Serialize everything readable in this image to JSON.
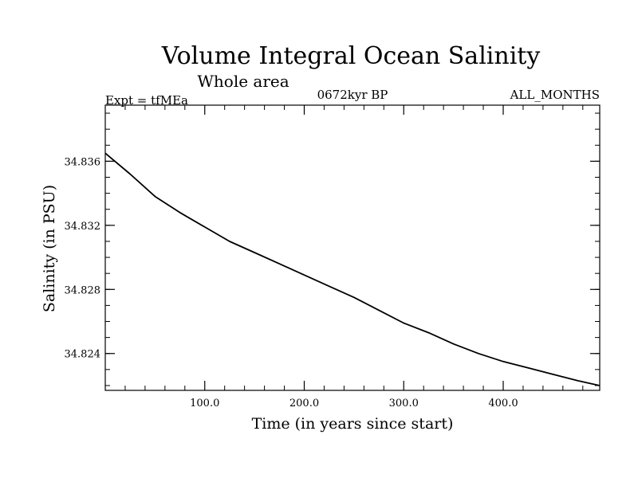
{
  "chart_data": {
    "type": "line",
    "title": "Volume Integral Ocean Salinity",
    "subtitle": "Whole area",
    "annotations": {
      "left": "Expt = tfMEa",
      "center": "0672kyr BP",
      "right": "ALL_MONTHS"
    },
    "xlabel": "Time (in years since start)",
    "ylabel": "Salinity (in PSU)",
    "xlim": [
      0,
      497
    ],
    "ylim": [
      34.8217,
      34.8395
    ],
    "x_ticks": [
      100,
      200,
      300,
      400
    ],
    "x_tick_labels": [
      "100.0",
      "200.0",
      "300.0",
      "400.0"
    ],
    "y_ticks": [
      34.824,
      34.828,
      34.832,
      34.836
    ],
    "y_tick_labels": [
      "34.824",
      "34.828",
      "34.832",
      "34.836"
    ],
    "grid": false,
    "series": [
      {
        "color": "#000000",
        "x": [
          0,
          25,
          50,
          75,
          100,
          125,
          150,
          175,
          200,
          225,
          250,
          275,
          300,
          325,
          350,
          375,
          400,
          425,
          450,
          475,
          497
        ],
        "values": [
          34.8365,
          34.8352,
          34.8338,
          34.8328,
          34.8319,
          34.831,
          34.8303,
          34.8296,
          34.8289,
          34.8282,
          34.8275,
          34.8267,
          34.8259,
          34.8253,
          34.8246,
          34.824,
          34.8235,
          34.8231,
          34.8227,
          34.8223,
          34.822
        ]
      }
    ]
  }
}
